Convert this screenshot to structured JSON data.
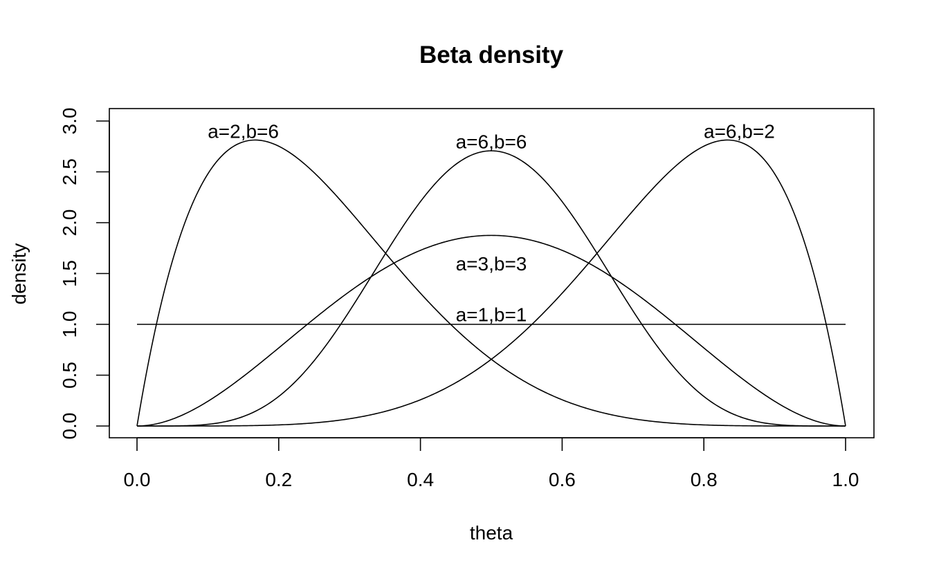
{
  "chart_data": {
    "type": "line",
    "title": "Beta density",
    "xlabel": "theta",
    "ylabel": "density",
    "xlim": [
      0,
      1
    ],
    "ylim": [
      0,
      3
    ],
    "x_ticks": [
      0.0,
      0.2,
      0.4,
      0.6,
      0.8,
      1.0
    ],
    "x_tick_labels": [
      "0.0",
      "0.2",
      "0.4",
      "0.6",
      "0.8",
      "1.0"
    ],
    "y_ticks": [
      0.0,
      0.5,
      1.0,
      1.5,
      2.0,
      2.5,
      3.0
    ],
    "y_tick_labels": [
      "0.0",
      "0.5",
      "1.0",
      "1.5",
      "2.0",
      "2.5",
      "3.0"
    ],
    "grid": false,
    "legend": "none",
    "line_color": "#000000",
    "series": [
      {
        "a": 1,
        "b": 1,
        "label": "a=1,b=1",
        "label_x": 0.5,
        "label_y": 1.1
      },
      {
        "a": 3,
        "b": 3,
        "label": "a=3,b=3",
        "label_x": 0.5,
        "label_y": 1.6
      },
      {
        "a": 6,
        "b": 6,
        "label": "a=6,b=6",
        "label_x": 0.5,
        "label_y": 2.8
      },
      {
        "a": 2,
        "b": 6,
        "label": "a=2,b=6",
        "label_x": 0.15,
        "label_y": 2.9
      },
      {
        "a": 6,
        "b": 2,
        "label": "a=6,b=2",
        "label_x": 0.85,
        "label_y": 2.9
      }
    ]
  }
}
